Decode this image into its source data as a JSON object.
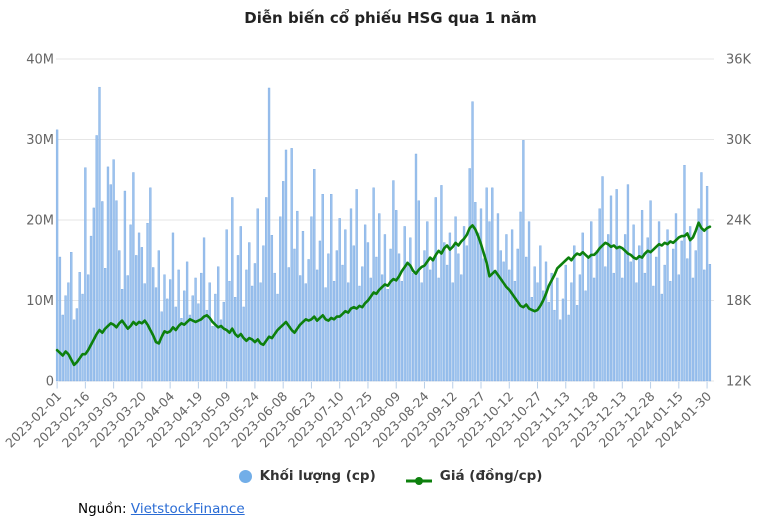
{
  "title": "Diễn biến cổ phiếu HSG qua 1 năm",
  "legend": {
    "volume": {
      "label": "Khối lượng (cp)"
    },
    "price": {
      "label": "Giá (đồng/cp)"
    }
  },
  "source": {
    "prefix": "Nguồn:",
    "link_text": "VietstockFinance"
  },
  "colors": {
    "bar_fill": "#9cc2ee",
    "bar_stroke": "#7aa9e0",
    "line": "#0d800d",
    "grid": "#e6e6e6",
    "axis_text": "#666666",
    "tick_mark": "#b9cfe8",
    "legend_marker_blue": "#72aee8",
    "title_text": "#222222",
    "legend_text": "#333333",
    "link": "#2a6cd5"
  },
  "chart_data": {
    "type": "bar",
    "subtype": "combo: volume bars on left axis + price line on right axis",
    "title": "Diễn biến cổ phiếu HSG qua 1 năm",
    "x_tick_labels": [
      "2023-02-01",
      "2023-02-16",
      "2023-03-03",
      "2023-03-20",
      "2023-04-04",
      "2023-04-19",
      "2023-05-09",
      "2023-05-24",
      "2023-06-08",
      "2023-06-23",
      "2023-07-10",
      "2023-07-25",
      "2023-08-09",
      "2023-08-24",
      "2023-09-12",
      "2023-09-27",
      "2023-10-12",
      "2023-10-27",
      "2023-11-13",
      "2023-11-28",
      "2023-12-13",
      "2023-12-28",
      "2024-01-15",
      "2024-01-30"
    ],
    "left_axis": {
      "tick_labels": [
        "0",
        "10M",
        "20M",
        "30M",
        "40M"
      ],
      "tick_values_million": [
        0,
        10,
        20,
        30,
        40
      ],
      "range_million": [
        0,
        40
      ]
    },
    "right_axis": {
      "tick_labels": [
        "12K",
        "18K",
        "24K",
        "30K",
        "36K"
      ],
      "tick_values_thousand": [
        12,
        18,
        24,
        30,
        36
      ],
      "range_thousand": [
        12,
        36
      ]
    },
    "grid": true,
    "legend_position": "bottom-center",
    "series": [
      {
        "name": "Khối lượng (cp)",
        "type": "bar",
        "yaxis": "left",
        "unit": "million shares",
        "values": [
          31.2,
          15.4,
          8.2,
          10.6,
          12.2,
          16.0,
          7.6,
          9.0,
          13.5,
          10.8,
          26.5,
          13.2,
          18.0,
          21.5,
          30.5,
          36.5,
          22.3,
          14.0,
          26.6,
          24.4,
          27.5,
          22.4,
          16.2,
          11.4,
          23.6,
          13.1,
          19.4,
          25.9,
          15.6,
          18.4,
          16.6,
          12.1,
          19.6,
          24.0,
          14.1,
          11.6,
          16.2,
          8.6,
          13.2,
          10.2,
          12.6,
          18.4,
          9.2,
          13.8,
          7.8,
          11.2,
          14.8,
          8.2,
          10.6,
          12.8,
          9.6,
          13.4,
          17.8,
          8.8,
          12.2,
          6.8,
          10.8,
          14.2,
          7.6,
          9.8,
          18.8,
          12.4,
          22.8,
          10.4,
          15.6,
          19.2,
          9.2,
          13.8,
          17.2,
          11.8,
          14.6,
          21.4,
          12.2,
          16.8,
          22.8,
          36.4,
          18.1,
          13.4,
          10.8,
          20.4,
          24.8,
          28.7,
          14.1,
          28.9,
          16.4,
          21.1,
          13.1,
          18.6,
          12.1,
          15.1,
          20.4,
          26.3,
          13.8,
          17.4,
          23.2,
          11.6,
          15.8,
          23.2,
          12.4,
          16.2,
          20.2,
          14.4,
          18.8,
          12.2,
          21.4,
          16.8,
          23.8,
          11.8,
          14.2,
          19.4,
          17.2,
          12.8,
          24.0,
          15.4,
          20.8,
          13.2,
          18.2,
          11.4,
          16.4,
          24.9,
          21.2,
          15.8,
          12.4,
          19.2,
          14.8,
          17.8,
          13.4,
          28.2,
          22.4,
          12.2,
          16.2,
          19.8,
          13.8,
          15.2,
          22.8,
          12.8,
          24.3,
          17.2,
          14.4,
          18.4,
          12.2,
          20.4,
          15.8,
          13.2,
          19.2,
          16.8,
          26.4,
          34.7,
          22.2,
          18.4,
          21.4,
          15.2,
          24.0,
          19.8,
          24.0,
          13.4,
          20.8,
          16.2,
          14.8,
          18.2,
          13.8,
          18.8,
          12.4,
          16.4,
          21.0,
          29.9,
          15.4,
          19.8,
          10.4,
          14.2,
          12.2,
          16.8,
          11.2,
          14.8,
          9.8,
          13.4,
          8.8,
          12.8,
          7.6,
          10.2,
          14.4,
          8.2,
          12.2,
          16.8,
          9.4,
          13.2,
          18.4,
          11.2,
          15.2,
          19.8,
          12.8,
          16.2,
          21.4,
          25.4,
          14.2,
          18.2,
          23.0,
          13.4,
          23.8,
          16.4,
          12.8,
          18.2,
          24.4,
          14.8,
          19.4,
          12.2,
          16.8,
          21.2,
          13.4,
          17.8,
          22.4,
          11.8,
          15.4,
          19.8,
          10.8,
          14.4,
          18.8,
          12.4,
          16.4,
          20.8,
          13.2,
          17.4,
          26.8,
          15.2,
          19.2,
          12.8,
          16.2,
          21.4,
          25.9,
          13.8,
          24.2,
          14.5
        ]
      },
      {
        "name": "Giá (đồng/cp)",
        "type": "line",
        "yaxis": "right",
        "unit": "thousand VND per share",
        "values": [
          14.3,
          14.1,
          13.9,
          14.2,
          14.0,
          13.6,
          13.2,
          13.4,
          13.7,
          14.0,
          14.0,
          14.3,
          14.7,
          15.1,
          15.5,
          15.8,
          15.6,
          15.9,
          16.1,
          16.3,
          16.2,
          16.0,
          16.3,
          16.5,
          16.2,
          15.9,
          16.1,
          16.4,
          16.2,
          16.4,
          16.3,
          16.5,
          16.2,
          15.8,
          15.4,
          14.9,
          14.8,
          15.3,
          15.7,
          15.6,
          15.7,
          16.0,
          15.8,
          16.1,
          16.3,
          16.2,
          16.4,
          16.6,
          16.5,
          16.4,
          16.5,
          16.6,
          16.8,
          16.9,
          16.7,
          16.4,
          16.2,
          16.0,
          16.1,
          15.9,
          15.8,
          15.6,
          15.9,
          15.5,
          15.3,
          15.5,
          15.2,
          15.0,
          15.2,
          15.1,
          14.9,
          15.1,
          14.8,
          14.7,
          15.0,
          15.3,
          15.2,
          15.5,
          15.8,
          16.0,
          16.2,
          16.4,
          16.1,
          15.8,
          15.6,
          15.9,
          16.2,
          16.4,
          16.6,
          16.5,
          16.6,
          16.8,
          16.5,
          16.7,
          16.9,
          16.6,
          16.5,
          16.7,
          16.6,
          16.8,
          16.8,
          17.0,
          17.2,
          17.1,
          17.4,
          17.5,
          17.4,
          17.6,
          17.5,
          17.8,
          18.0,
          18.3,
          18.6,
          18.5,
          18.8,
          19.0,
          19.2,
          19.1,
          19.4,
          19.6,
          19.5,
          19.8,
          20.2,
          20.5,
          20.8,
          20.6,
          20.2,
          20.0,
          20.3,
          20.5,
          20.6,
          20.9,
          21.2,
          21.0,
          21.4,
          21.7,
          21.5,
          21.9,
          22.1,
          21.8,
          22.0,
          22.3,
          22.1,
          22.4,
          22.6,
          22.9,
          23.4,
          23.6,
          23.3,
          22.8,
          22.2,
          21.5,
          20.8,
          19.8,
          20.0,
          20.2,
          19.9,
          19.6,
          19.3,
          19.0,
          18.8,
          18.5,
          18.2,
          17.9,
          17.6,
          17.5,
          17.7,
          17.4,
          17.3,
          17.2,
          17.3,
          17.6,
          18.0,
          18.5,
          19.1,
          19.5,
          19.9,
          20.4,
          20.6,
          20.8,
          21.0,
          21.2,
          21.0,
          21.3,
          21.5,
          21.4,
          21.6,
          21.4,
          21.2,
          21.4,
          21.4,
          21.6,
          21.9,
          22.1,
          22.3,
          22.2,
          22.0,
          22.1,
          21.9,
          22.0,
          21.9,
          21.7,
          21.5,
          21.4,
          21.2,
          21.1,
          21.3,
          21.2,
          21.5,
          21.7,
          21.6,
          21.8,
          22.0,
          22.2,
          22.1,
          22.3,
          22.2,
          22.4,
          22.3,
          22.5,
          22.7,
          22.8,
          22.8,
          23.0,
          22.5,
          22.7,
          23.2,
          23.8,
          23.4,
          23.2,
          23.4,
          23.5
        ]
      }
    ]
  }
}
